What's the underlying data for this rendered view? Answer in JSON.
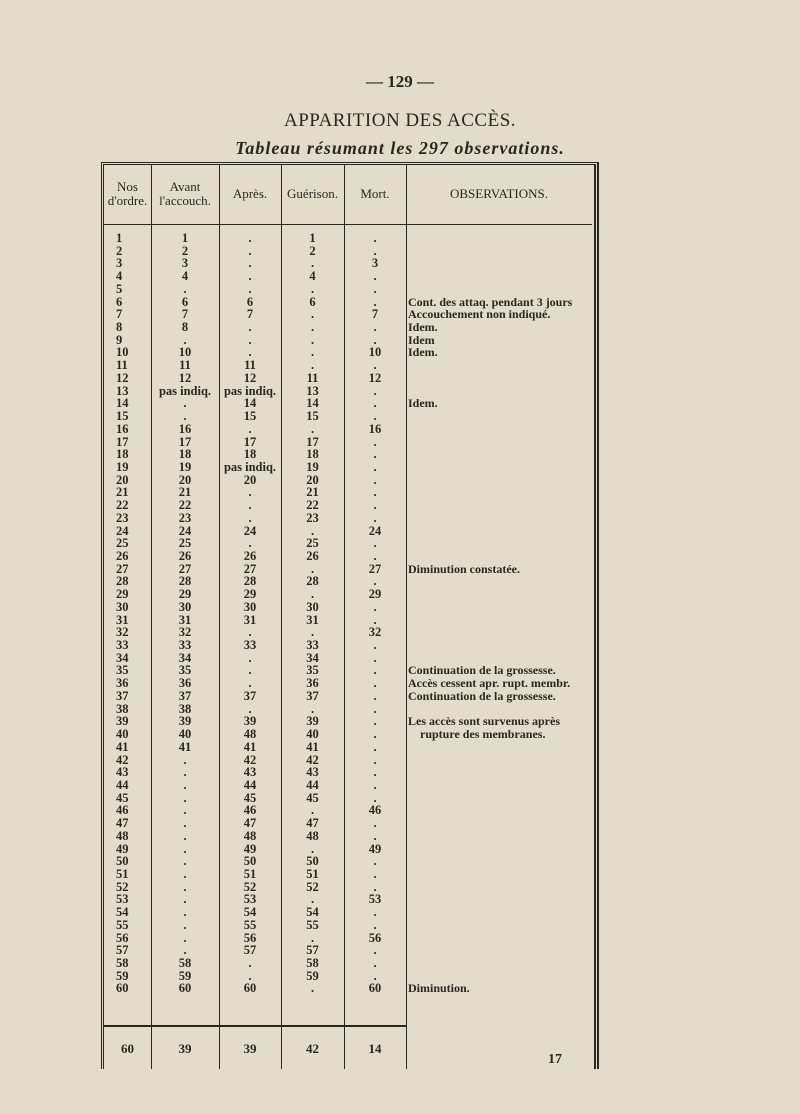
{
  "page_number": "— 129 —",
  "title": "APPARITION DES ACCÈS.",
  "subtitle": "Tableau résumant les 297 observations.",
  "table": {
    "headers": [
      "Nos d'ordre.",
      "Avant l'accouch.",
      "Après.",
      "Guérison.",
      "Mort.",
      "OBSERVATIONS."
    ],
    "rows": [
      [
        "1",
        "1",
        ".",
        "1",
        "."
      ],
      [
        "2",
        "2",
        ".",
        "2",
        "."
      ],
      [
        "3",
        "3",
        ".",
        ".",
        "3"
      ],
      [
        "4",
        "4",
        ".",
        "4",
        "."
      ],
      [
        "5",
        ".",
        ".",
        ".",
        "."
      ],
      [
        "6",
        "6",
        "6",
        "6",
        "."
      ],
      [
        "7",
        "7",
        "7",
        ".",
        "7"
      ],
      [
        "8",
        "8",
        ".",
        ".",
        "."
      ],
      [
        "9",
        ".",
        ".",
        ".",
        "."
      ],
      [
        "10",
        "10",
        ".",
        ".",
        "10"
      ],
      [
        "11",
        "11",
        "11",
        ".",
        "."
      ],
      [
        "12",
        "12",
        "12",
        "11",
        "12"
      ],
      [
        "13",
        "pas indiq.",
        "pas indiq.",
        "13",
        "."
      ],
      [
        "14",
        ".",
        "14",
        "14",
        "."
      ],
      [
        "15",
        ".",
        "15",
        "15",
        "."
      ],
      [
        "16",
        "16",
        ".",
        ".",
        "16"
      ],
      [
        "17",
        "17",
        "17",
        "17",
        "."
      ],
      [
        "18",
        "18",
        "18",
        "18",
        "."
      ],
      [
        "19",
        "19",
        "pas indiq.",
        "19",
        "."
      ],
      [
        "20",
        "20",
        "20",
        "20",
        "."
      ],
      [
        "21",
        "21",
        ".",
        "21",
        "."
      ],
      [
        "22",
        "22",
        ".",
        "22",
        "."
      ],
      [
        "23",
        "23",
        ".",
        "23",
        "."
      ],
      [
        "24",
        "24",
        "24",
        ".",
        "24"
      ],
      [
        "25",
        "25",
        ".",
        "25",
        "."
      ],
      [
        "26",
        "26",
        "26",
        "26",
        "."
      ],
      [
        "27",
        "27",
        "27",
        ".",
        "27"
      ],
      [
        "28",
        "28",
        "28",
        "28",
        "."
      ],
      [
        "29",
        "29",
        "29",
        ".",
        "29"
      ],
      [
        "30",
        "30",
        "30",
        "30",
        "."
      ],
      [
        "31",
        "31",
        "31",
        "31",
        "."
      ],
      [
        "32",
        "32",
        ".",
        ".",
        "32"
      ],
      [
        "33",
        "33",
        "33",
        "33",
        "."
      ],
      [
        "34",
        "34",
        ".",
        "34",
        "."
      ],
      [
        "35",
        "35",
        ".",
        "35",
        "."
      ],
      [
        "36",
        "36",
        ".",
        "36",
        "."
      ],
      [
        "37",
        "37",
        "37",
        "37",
        "."
      ],
      [
        "38",
        "38",
        ".",
        ".",
        "."
      ],
      [
        "39",
        "39",
        "39",
        "39",
        "."
      ],
      [
        "40",
        "40",
        "48",
        "40",
        "."
      ],
      [
        "41",
        "41",
        "41",
        "41",
        "."
      ],
      [
        "42",
        ".",
        "42",
        "42",
        "."
      ],
      [
        "43",
        ".",
        "43",
        "43",
        "."
      ],
      [
        "44",
        ".",
        "44",
        "44",
        "."
      ],
      [
        "45",
        ".",
        "45",
        "45",
        "."
      ],
      [
        "46",
        ".",
        "46",
        ".",
        "46"
      ],
      [
        "47",
        ".",
        "47",
        "47",
        "."
      ],
      [
        "48",
        ".",
        "48",
        "48",
        "."
      ],
      [
        "49",
        ".",
        "49",
        ".",
        "49"
      ],
      [
        "50",
        ".",
        "50",
        "50",
        "."
      ],
      [
        "51",
        ".",
        "51",
        "51",
        "."
      ],
      [
        "52",
        ".",
        "52",
        "52",
        "."
      ],
      [
        "53",
        ".",
        "53",
        ".",
        "53"
      ],
      [
        "54",
        ".",
        "54",
        "54",
        "."
      ],
      [
        "55",
        ".",
        "55",
        "55",
        "."
      ],
      [
        "56",
        ".",
        "56",
        ".",
        "56"
      ],
      [
        "57",
        ".",
        "57",
        "57",
        "."
      ],
      [
        "58",
        "58",
        ".",
        "58",
        "."
      ],
      [
        "59",
        "59",
        ".",
        "59",
        "."
      ],
      [
        "60",
        "60",
        "60",
        ".",
        "60"
      ]
    ],
    "observations": {
      "6": "Cont. des attaq. pendant 3 jours",
      "7": "Accouchement non indiqué.",
      "8": "Idem.",
      "9": "Idem",
      "10": "Idem.",
      "14": "Idem.",
      "27": "Diminution constatée.",
      "35": "Continuation de la grossesse.",
      "36": "Accès cessent apr. rupt. membr.",
      "37": "Continuation de la grossesse.",
      "39": "Les accès sont survenus après",
      "40": "rupture des membranes.",
      "60": "Diminution."
    },
    "totals": [
      "60",
      "39",
      "39",
      "42",
      "14"
    ]
  },
  "footer_number": "17"
}
